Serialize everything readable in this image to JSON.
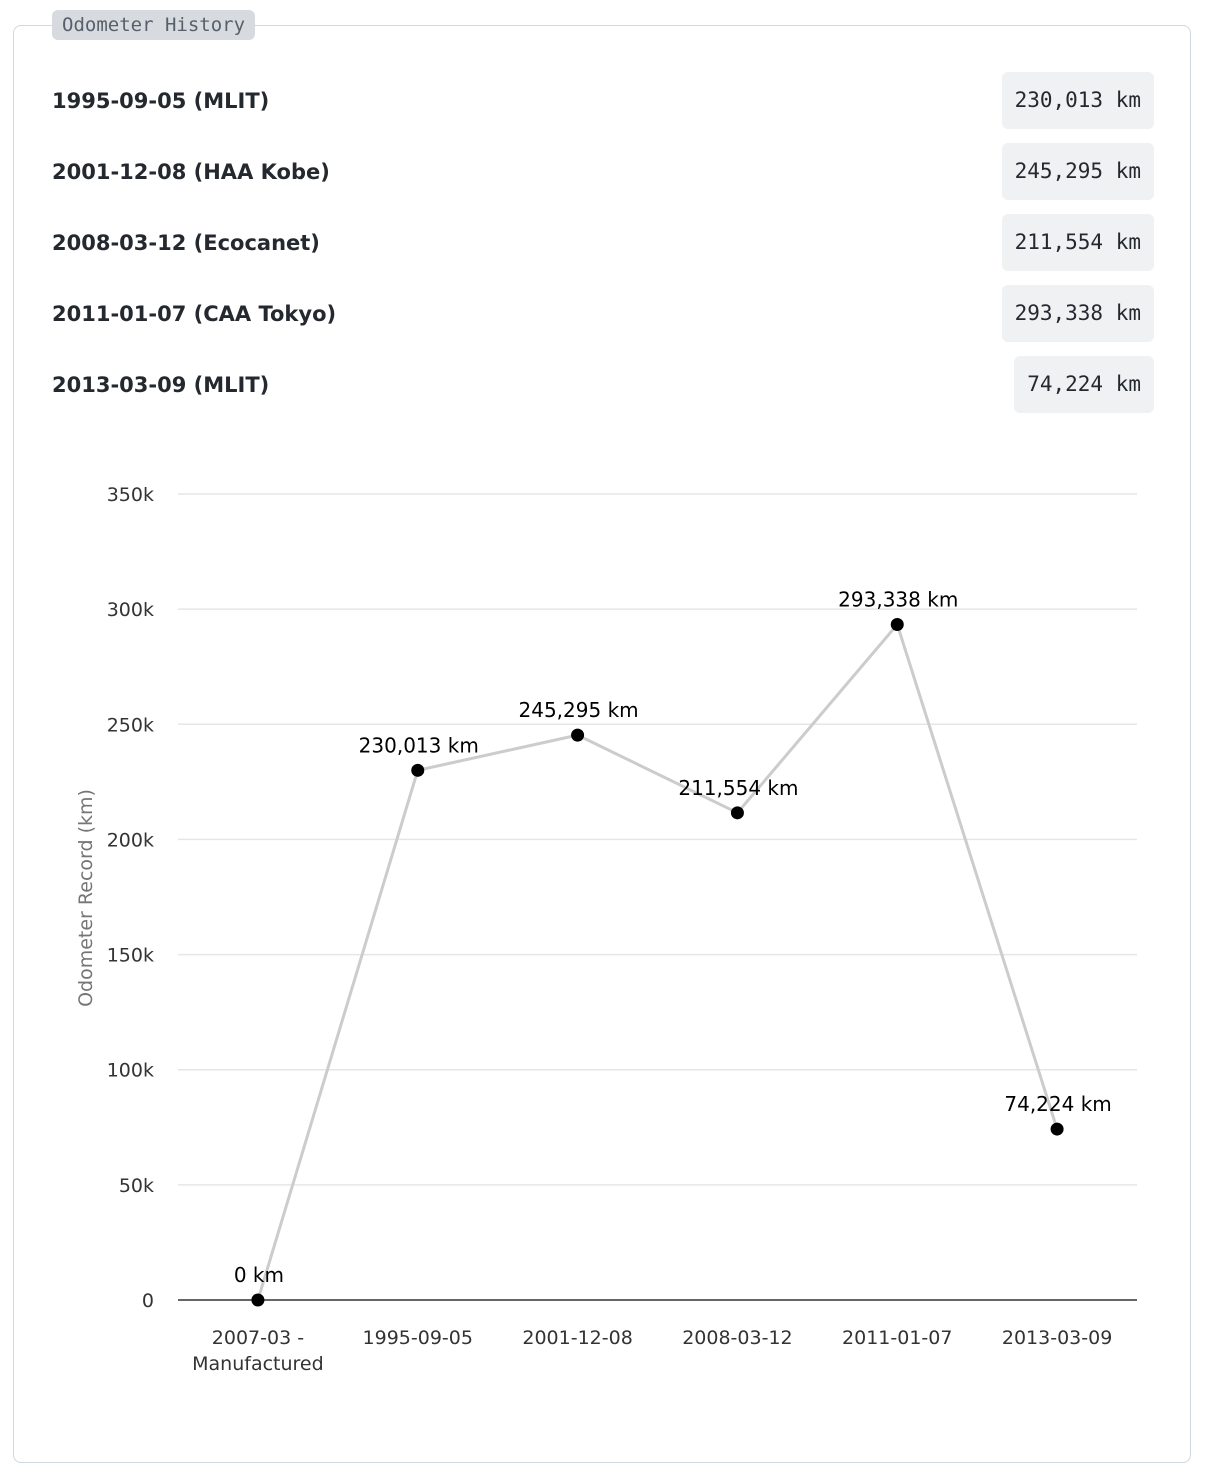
{
  "section": {
    "title": "Odometer History"
  },
  "records": [
    {
      "label": "1995-09-05 (MLIT)",
      "value": "230,013 km"
    },
    {
      "label": "2001-12-08 (HAA Kobe)",
      "value": "245,295 km"
    },
    {
      "label": "2008-03-12 (Ecocanet)",
      "value": "211,554 km"
    },
    {
      "label": "2011-01-07 (CAA Tokyo)",
      "value": "293,338 km"
    },
    {
      "label": "2013-03-09 (MLIT)",
      "value": "74,224 km"
    }
  ],
  "chart_data": {
    "type": "line",
    "title": "",
    "xlabel": "",
    "ylabel": "Odometer Record (km)",
    "categories": [
      [
        "2007-03 -",
        "Manufactured"
      ],
      [
        "1995-09-05"
      ],
      [
        "2001-12-08"
      ],
      [
        "2008-03-12"
      ],
      [
        "2011-01-07"
      ],
      [
        "2013-03-09"
      ]
    ],
    "values": [
      0,
      230013,
      245295,
      211554,
      293338,
      74224
    ],
    "data_labels": [
      "0 km",
      "230,013 km",
      "245,295 km",
      "211,554 km",
      "293,338 km",
      "74,224 km"
    ],
    "ylim": [
      0,
      350000
    ],
    "yticks": [
      0,
      50000,
      100000,
      150000,
      200000,
      250000,
      300000,
      350000
    ],
    "ytick_labels": [
      "0",
      "50k",
      "100k",
      "150k",
      "200k",
      "250k",
      "300k",
      "350k"
    ],
    "grid": true,
    "colors": {
      "line": "#cccccc",
      "point": "#000000",
      "grid": "#e6e6e6",
      "baseline": "#333333"
    }
  }
}
